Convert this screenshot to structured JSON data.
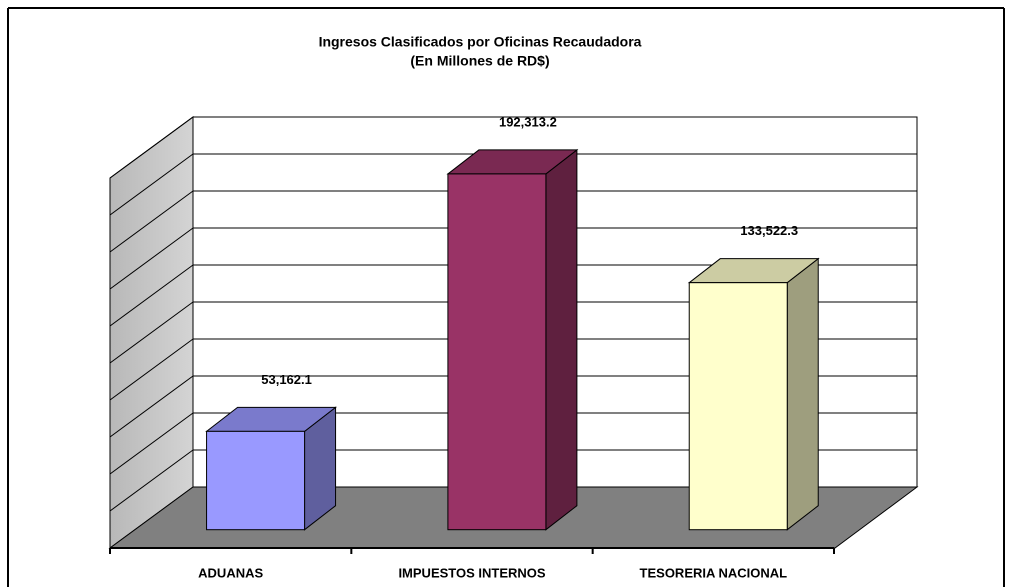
{
  "chart_data": {
    "type": "bar3d",
    "title": "Ingresos Clasificados por Oficinas Recaudadora",
    "subtitle": "(En Millones de RD$)",
    "categories": [
      "ADUANAS",
      "IMPUESTOS INTERNOS",
      "TESORERIA NACIONAL"
    ],
    "values": [
      53162.1,
      192313.2,
      133522.3
    ],
    "value_labels": [
      "53,162.1",
      "192,313.2",
      "133,522.3"
    ],
    "colors": [
      "#9999ff",
      "#993366",
      "#ffffcc"
    ],
    "ylim": [
      0,
      200000
    ],
    "yticks": [
      0,
      20000,
      40000,
      60000,
      80000,
      100000,
      120000,
      140000,
      160000,
      180000,
      200000
    ],
    "grid": true
  }
}
